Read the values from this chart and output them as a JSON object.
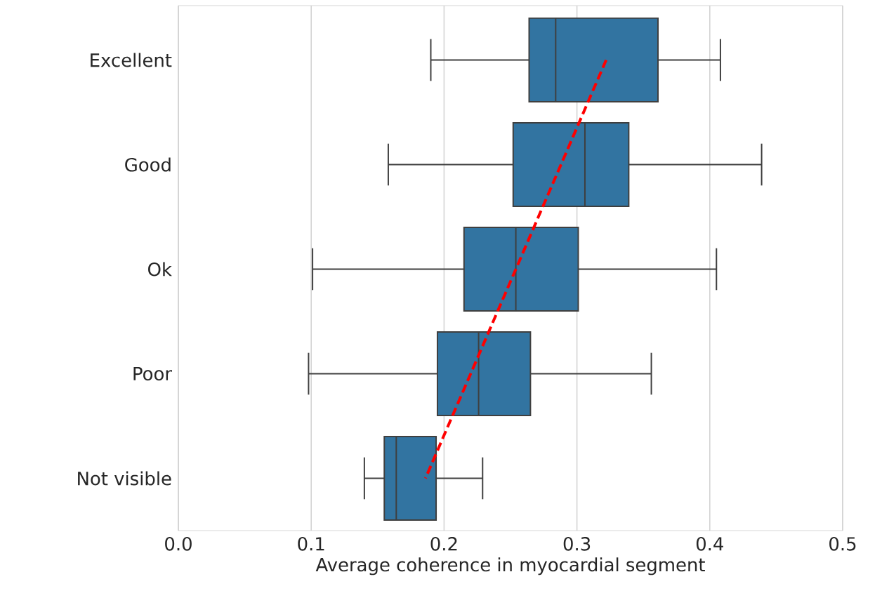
{
  "chart_data": {
    "type": "box",
    "orientation": "horizontal",
    "xlabel": "Average coherence in myocardial segment",
    "categories": [
      "Excellent",
      "Good",
      "Ok",
      "Poor",
      "Not visible"
    ],
    "color": "#3274a1",
    "boxes": [
      {
        "low": 0.19,
        "q1": 0.264,
        "median": 0.284,
        "q3": 0.361,
        "high": 0.408
      },
      {
        "low": 0.158,
        "q1": 0.252,
        "median": 0.306,
        "q3": 0.339,
        "high": 0.439
      },
      {
        "low": 0.101,
        "q1": 0.215,
        "median": 0.254,
        "q3": 0.301,
        "high": 0.405
      },
      {
        "low": 0.098,
        "q1": 0.195,
        "median": 0.226,
        "q3": 0.265,
        "high": 0.356
      },
      {
        "low": 0.14,
        "q1": 0.155,
        "median": 0.164,
        "q3": 0.194,
        "high": 0.229
      }
    ],
    "series": [
      {
        "type": "line",
        "color": "#ff0000",
        "line_style": "dashed",
        "values": [
          0.322,
          0.288,
          0.254,
          0.22,
          0.186
        ]
      }
    ],
    "xlim": [
      0,
      0.5
    ],
    "xticks": [
      {
        "value": 0,
        "label": "0.0"
      },
      0.1,
      0.2,
      0.3,
      0.4,
      0.5
    ],
    "grid": "x"
  }
}
